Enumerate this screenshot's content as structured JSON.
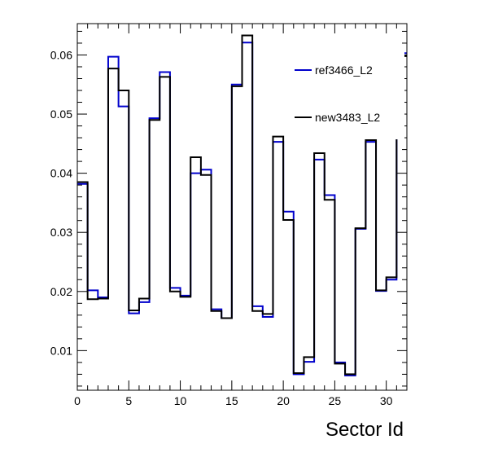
{
  "chart_data": {
    "type": "histogram-step",
    "xlabel": "Sector Id",
    "ylabel": "",
    "xlim": [
      0,
      32
    ],
    "ylim": [
      0.0033,
      0.0653
    ],
    "x_ticks": [
      0,
      5,
      10,
      15,
      20,
      25,
      30
    ],
    "x_tick_labels": [
      "0",
      "5",
      "10",
      "15",
      "20",
      "25",
      "30"
    ],
    "y_ticks": [
      0.01,
      0.02,
      0.03,
      0.04,
      0.05,
      0.06
    ],
    "y_tick_labels": [
      "0.01",
      "0.02",
      "0.03",
      "0.04",
      "0.05",
      "0.06"
    ],
    "grid": false,
    "legend_position": "top-right",
    "bin_width": 1,
    "series": [
      {
        "name": "ref3466_L2",
        "color": "#0000cc",
        "values": [
          0.0382,
          0.0202,
          0.019,
          0.0597,
          0.0513,
          0.0163,
          0.0182,
          0.0493,
          0.0571,
          0.0206,
          0.0193,
          0.04,
          0.0406,
          0.017,
          0.0155,
          0.055,
          0.0621,
          0.0175,
          0.0157,
          0.0453,
          0.0335,
          0.006,
          0.0081,
          0.0423,
          0.0363,
          0.008,
          0.0058,
          0.0306,
          0.0453,
          0.0201,
          0.022,
          0.0603
        ]
      },
      {
        "name": "new3483_L2",
        "color": "#000000",
        "values": [
          0.0385,
          0.0187,
          0.0188,
          0.0577,
          0.054,
          0.0168,
          0.0188,
          0.049,
          0.0563,
          0.02,
          0.0191,
          0.0427,
          0.0397,
          0.0167,
          0.0155,
          0.0547,
          0.0633,
          0.0167,
          0.0162,
          0.0462,
          0.0321,
          0.0062,
          0.0089,
          0.0434,
          0.0355,
          0.0078,
          0.006,
          0.0307,
          0.0456,
          0.0202,
          0.0224,
          0.0598
        ]
      }
    ]
  }
}
